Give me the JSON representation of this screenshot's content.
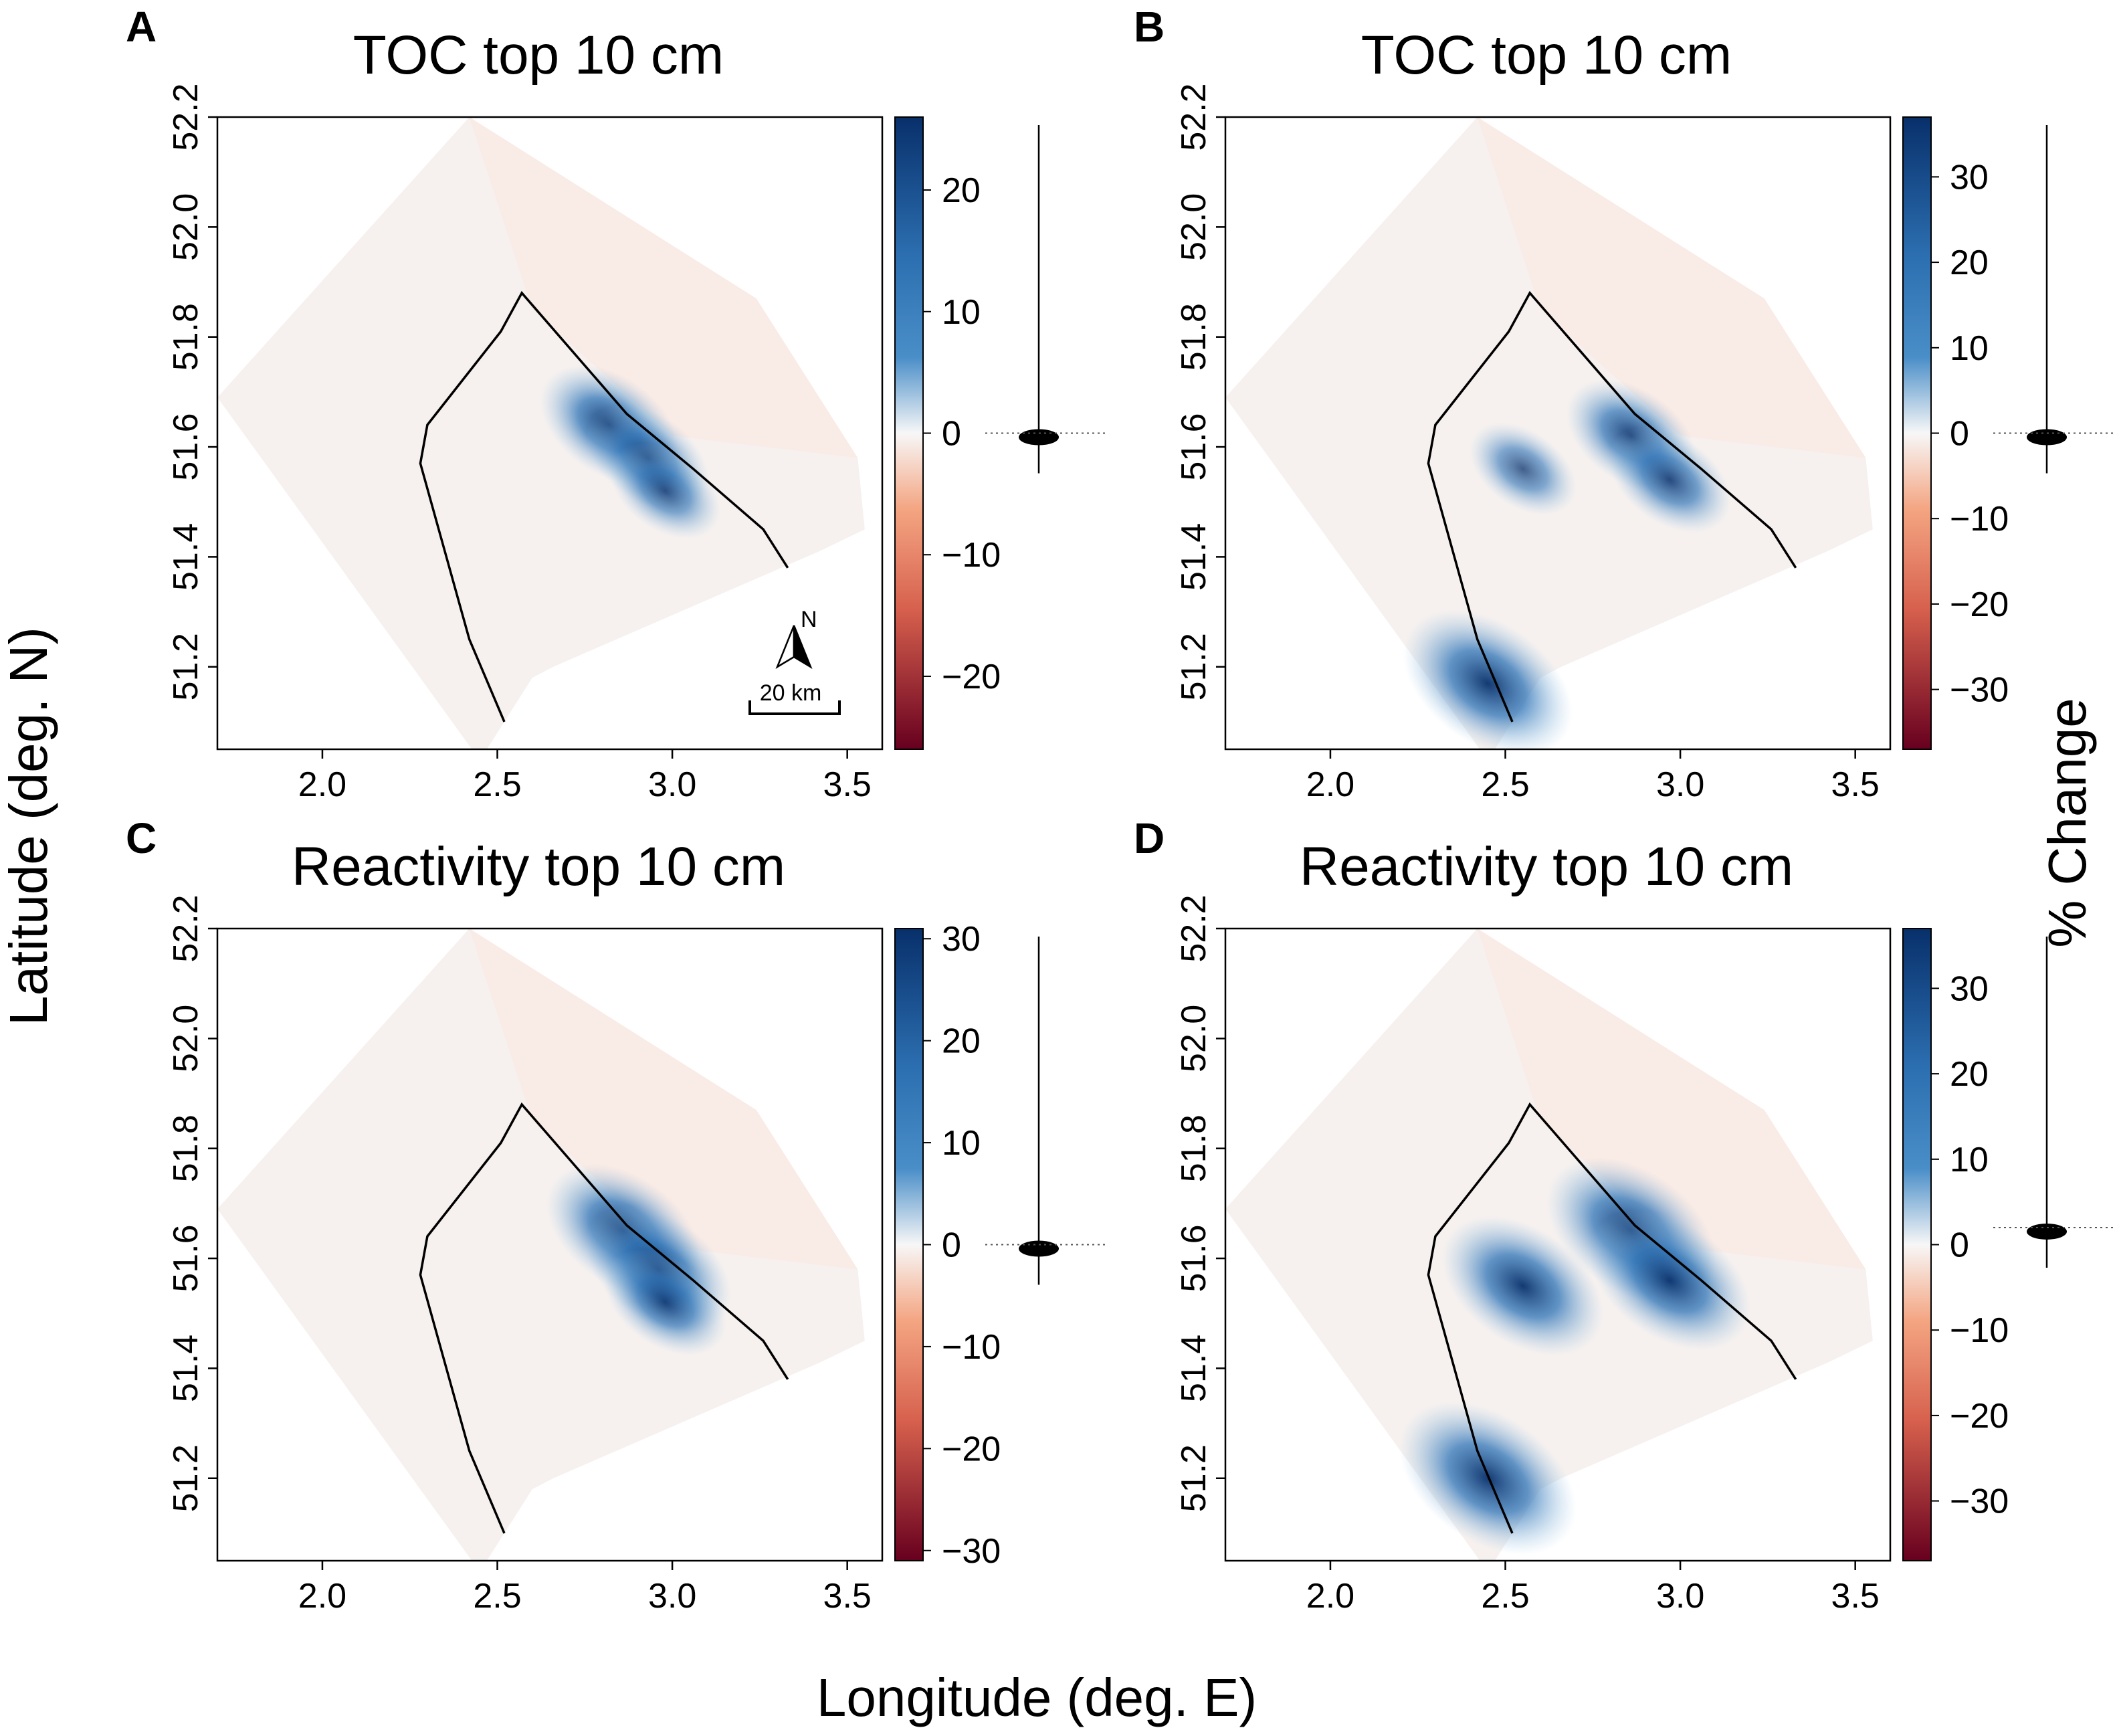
{
  "figure": {
    "x_axis_title": "Longitude (deg. E)",
    "y_axis_title": "Latitude (deg. N)",
    "colorbar_title": "% Change",
    "north_label": "N",
    "scale_label": "20 km"
  },
  "colors": {
    "positive_max": "#08306b",
    "positive_mid": "#4a8ec8",
    "neutral": "#f7f7f7",
    "negative_mid": "#f4a582",
    "negative_max": "#67001f",
    "outline": "#000000"
  },
  "chart_data": [
    {
      "id": "A",
      "type": "heatmap",
      "letter": "A",
      "title": "TOC top 10 cm",
      "xlim": [
        1.7,
        3.6
      ],
      "ylim": [
        51.05,
        52.2
      ],
      "x_ticks": [
        "2.0",
        "2.5",
        "3.0",
        "3.5"
      ],
      "y_ticks": [
        "51.2",
        "51.4",
        "51.6",
        "51.8",
        "52.0",
        "52.2"
      ],
      "colorbar_range": [
        -26,
        26
      ],
      "colorbar_ticks": [
        "20",
        "10",
        "0",
        "−10",
        "−20"
      ],
      "colorbar_tick_values": [
        20,
        10,
        0,
        -10,
        -20
      ],
      "violin_median": 0,
      "has_scale": true,
      "hotspots": [
        {
          "lon": 2.82,
          "lat": 51.64,
          "value": 22
        },
        {
          "lon": 2.93,
          "lat": 51.58,
          "value": 18
        },
        {
          "lon": 2.98,
          "lat": 51.52,
          "value": 15
        }
      ]
    },
    {
      "id": "B",
      "type": "heatmap",
      "letter": "B",
      "title": "TOC top 10 cm",
      "xlim": [
        1.7,
        3.6
      ],
      "ylim": [
        51.05,
        52.2
      ],
      "x_ticks": [
        "2.0",
        "2.5",
        "3.0",
        "3.5"
      ],
      "y_ticks": [
        "51.2",
        "51.4",
        "51.6",
        "51.8",
        "52.0",
        "52.2"
      ],
      "colorbar_range": [
        -37,
        37
      ],
      "colorbar_ticks": [
        "30",
        "20",
        "10",
        "0",
        "−10",
        "−20",
        "−30"
      ],
      "colorbar_tick_values": [
        30,
        20,
        10,
        0,
        -10,
        -20,
        -30
      ],
      "violin_median": 0,
      "has_scale": false,
      "hotspots": [
        {
          "lon": 2.86,
          "lat": 51.62,
          "value": 20
        },
        {
          "lon": 2.97,
          "lat": 51.54,
          "value": 18
        },
        {
          "lon": 2.55,
          "lat": 51.56,
          "value": 14
        },
        {
          "lon": 2.45,
          "lat": 51.17,
          "value": 30
        }
      ]
    },
    {
      "id": "C",
      "type": "heatmap",
      "letter": "C",
      "title": "Reactivity top 10 cm",
      "xlim": [
        1.7,
        3.6
      ],
      "ylim": [
        51.05,
        52.2
      ],
      "x_ticks": [
        "2.0",
        "2.5",
        "3.0",
        "3.5"
      ],
      "y_ticks": [
        "51.2",
        "51.4",
        "51.6",
        "51.8",
        "52.0",
        "52.2"
      ],
      "colorbar_range": [
        -31,
        31
      ],
      "colorbar_ticks": [
        "30",
        "20",
        "10",
        "0",
        "−10",
        "−20",
        "−30"
      ],
      "colorbar_tick_values": [
        30,
        20,
        10,
        0,
        -10,
        -20,
        -30
      ],
      "violin_median": 0,
      "has_scale": false,
      "hotspots": [
        {
          "lon": 2.86,
          "lat": 51.65,
          "value": 26
        },
        {
          "lon": 2.96,
          "lat": 51.58,
          "value": 24
        },
        {
          "lon": 2.98,
          "lat": 51.52,
          "value": 18
        }
      ]
    },
    {
      "id": "D",
      "type": "heatmap",
      "letter": "D",
      "title": "Reactivity top 10 cm",
      "xlim": [
        1.7,
        3.6
      ],
      "ylim": [
        51.05,
        52.2
      ],
      "x_ticks": [
        "2.0",
        "2.5",
        "3.0",
        "3.5"
      ],
      "y_ticks": [
        "51.2",
        "51.4",
        "51.6",
        "51.8",
        "52.0",
        "52.2"
      ],
      "colorbar_range": [
        -37,
        37
      ],
      "colorbar_ticks": [
        "30",
        "20",
        "10",
        "0",
        "−10",
        "−20",
        "−30"
      ],
      "colorbar_tick_values": [
        30,
        20,
        10,
        0,
        -10,
        -20,
        -30
      ],
      "violin_median": 2,
      "has_scale": false,
      "hotspots": [
        {
          "lon": 2.86,
          "lat": 51.65,
          "value": 30
        },
        {
          "lon": 2.97,
          "lat": 51.56,
          "value": 28
        },
        {
          "lon": 2.55,
          "lat": 51.55,
          "value": 28
        },
        {
          "lon": 2.45,
          "lat": 51.2,
          "value": 32
        }
      ]
    }
  ]
}
